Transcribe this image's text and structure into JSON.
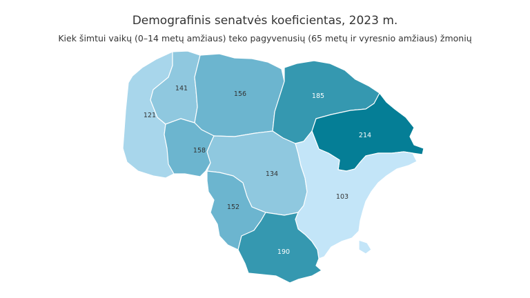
{
  "title": "Demografinis senatvės koeficientas, 2023 m.",
  "subtitle": "Kiek šimtui vaikų (0–14 metų amžiaus) teko pagyvenusių (65 metų ir vyresnio amžiaus) žmonių",
  "colors": {
    "level_1": "#c3e5f8",
    "level_2": "#a8d6eb",
    "level_3": "#8fc8df",
    "level_4": "#6cb5cf",
    "level_5": "#3598b0",
    "level_6": "#057e96",
    "label_dark": "#333333",
    "label_light": "#ffffff"
  },
  "regions": [
    {
      "id": "r1",
      "value": "121",
      "level": "level_2"
    },
    {
      "id": "r2",
      "value": "141",
      "level": "level_3"
    },
    {
      "id": "r3",
      "value": "156",
      "level": "level_4"
    },
    {
      "id": "r4",
      "value": "185",
      "level": "level_5"
    },
    {
      "id": "r5",
      "value": "214",
      "level": "level_6"
    },
    {
      "id": "r6",
      "value": "158",
      "level": "level_4"
    },
    {
      "id": "r7",
      "value": "134",
      "level": "level_3"
    },
    {
      "id": "r8",
      "value": "103",
      "level": "level_1"
    },
    {
      "id": "r9",
      "value": "152",
      "level": "level_4"
    },
    {
      "id": "r10",
      "value": "190",
      "level": "level_5"
    }
  ]
}
